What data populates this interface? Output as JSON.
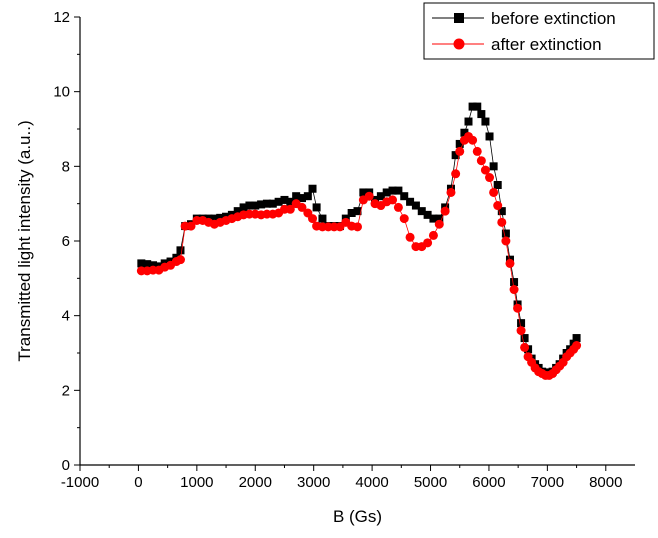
{
  "chart_data": {
    "type": "scatter",
    "title": "",
    "xlabel": "B (Gs)",
    "ylabel": "Transmitted light intensity (a.u..)",
    "xlim": [
      -1000,
      8500
    ],
    "ylim": [
      0,
      12
    ],
    "xticks": [
      -1000,
      0,
      1000,
      2000,
      3000,
      4000,
      5000,
      6000,
      7000,
      8000
    ],
    "yticks": [
      0,
      2,
      4,
      6,
      8,
      10,
      12
    ],
    "grid": false,
    "legend": {
      "position": "top-right",
      "frame": true
    },
    "series": [
      {
        "name": "before extinction",
        "marker": "square",
        "color": "#000000",
        "line_color": "#000000",
        "points": [
          [
            50,
            5.4
          ],
          [
            150,
            5.38
          ],
          [
            250,
            5.35
          ],
          [
            350,
            5.32
          ],
          [
            450,
            5.4
          ],
          [
            550,
            5.45
          ],
          [
            650,
            5.55
          ],
          [
            720,
            5.75
          ],
          [
            800,
            6.4
          ],
          [
            900,
            6.45
          ],
          [
            1000,
            6.6
          ],
          [
            1100,
            6.6
          ],
          [
            1200,
            6.6
          ],
          [
            1300,
            6.6
          ],
          [
            1400,
            6.62
          ],
          [
            1500,
            6.65
          ],
          [
            1600,
            6.7
          ],
          [
            1700,
            6.8
          ],
          [
            1800,
            6.9
          ],
          [
            1900,
            6.95
          ],
          [
            2000,
            6.95
          ],
          [
            2100,
            6.98
          ],
          [
            2200,
            7.0
          ],
          [
            2300,
            7.0
          ],
          [
            2400,
            7.05
          ],
          [
            2500,
            7.1
          ],
          [
            2600,
            7.05
          ],
          [
            2700,
            7.2
          ],
          [
            2800,
            7.15
          ],
          [
            2900,
            7.2
          ],
          [
            2980,
            7.4
          ],
          [
            3050,
            6.9
          ],
          [
            3150,
            6.6
          ],
          [
            3250,
            6.4
          ],
          [
            3350,
            6.4
          ],
          [
            3450,
            6.4
          ],
          [
            3550,
            6.6
          ],
          [
            3650,
            6.75
          ],
          [
            3750,
            6.8
          ],
          [
            3850,
            7.3
          ],
          [
            3950,
            7.3
          ],
          [
            4050,
            7.1
          ],
          [
            4150,
            7.2
          ],
          [
            4250,
            7.3
          ],
          [
            4350,
            7.35
          ],
          [
            4450,
            7.35
          ],
          [
            4550,
            7.2
          ],
          [
            4650,
            7.05
          ],
          [
            4750,
            6.95
          ],
          [
            4850,
            6.8
          ],
          [
            4950,
            6.7
          ],
          [
            5050,
            6.6
          ],
          [
            5150,
            6.6
          ],
          [
            5250,
            6.9
          ],
          [
            5350,
            7.4
          ],
          [
            5430,
            8.3
          ],
          [
            5500,
            8.6
          ],
          [
            5580,
            8.9
          ],
          [
            5650,
            9.2
          ],
          [
            5720,
            9.6
          ],
          [
            5800,
            9.6
          ],
          [
            5870,
            9.4
          ],
          [
            5940,
            9.2
          ],
          [
            6010,
            8.8
          ],
          [
            6080,
            8.0
          ],
          [
            6150,
            7.5
          ],
          [
            6220,
            6.8
          ],
          [
            6290,
            6.2
          ],
          [
            6360,
            5.5
          ],
          [
            6430,
            4.9
          ],
          [
            6490,
            4.3
          ],
          [
            6550,
            3.8
          ],
          [
            6610,
            3.4
          ],
          [
            6670,
            3.1
          ],
          [
            6730,
            2.85
          ],
          [
            6790,
            2.7
          ],
          [
            6850,
            2.6
          ],
          [
            6910,
            2.5
          ],
          [
            6970,
            2.45
          ],
          [
            7030,
            2.48
          ],
          [
            7090,
            2.5
          ],
          [
            7150,
            2.6
          ],
          [
            7210,
            2.7
          ],
          [
            7270,
            2.85
          ],
          [
            7330,
            3.0
          ],
          [
            7390,
            3.1
          ],
          [
            7450,
            3.25
          ],
          [
            7500,
            3.4
          ]
        ]
      },
      {
        "name": "after extinction",
        "marker": "circle",
        "color": "#ff0000",
        "line_color": "#ff0000",
        "points": [
          [
            50,
            5.2
          ],
          [
            150,
            5.2
          ],
          [
            250,
            5.22
          ],
          [
            350,
            5.22
          ],
          [
            450,
            5.3
          ],
          [
            550,
            5.35
          ],
          [
            650,
            5.45
          ],
          [
            720,
            5.5
          ],
          [
            800,
            6.4
          ],
          [
            900,
            6.4
          ],
          [
            1000,
            6.55
          ],
          [
            1100,
            6.55
          ],
          [
            1200,
            6.5
          ],
          [
            1300,
            6.45
          ],
          [
            1400,
            6.5
          ],
          [
            1500,
            6.55
          ],
          [
            1600,
            6.6
          ],
          [
            1700,
            6.65
          ],
          [
            1800,
            6.7
          ],
          [
            1900,
            6.72
          ],
          [
            2000,
            6.72
          ],
          [
            2100,
            6.7
          ],
          [
            2200,
            6.72
          ],
          [
            2300,
            6.72
          ],
          [
            2400,
            6.75
          ],
          [
            2500,
            6.85
          ],
          [
            2600,
            6.85
          ],
          [
            2700,
            7.0
          ],
          [
            2800,
            6.9
          ],
          [
            2900,
            6.75
          ],
          [
            2980,
            6.6
          ],
          [
            3050,
            6.4
          ],
          [
            3150,
            6.38
          ],
          [
            3250,
            6.38
          ],
          [
            3350,
            6.38
          ],
          [
            3450,
            6.38
          ],
          [
            3550,
            6.5
          ],
          [
            3650,
            6.4
          ],
          [
            3750,
            6.38
          ],
          [
            3850,
            7.1
          ],
          [
            3950,
            7.2
          ],
          [
            4050,
            7.0
          ],
          [
            4150,
            6.95
          ],
          [
            4250,
            7.05
          ],
          [
            4350,
            7.1
          ],
          [
            4450,
            6.9
          ],
          [
            4550,
            6.6
          ],
          [
            4650,
            6.1
          ],
          [
            4750,
            5.85
          ],
          [
            4850,
            5.85
          ],
          [
            4950,
            5.95
          ],
          [
            5050,
            6.15
          ],
          [
            5150,
            6.45
          ],
          [
            5250,
            6.8
          ],
          [
            5350,
            7.3
          ],
          [
            5430,
            7.8
          ],
          [
            5500,
            8.4
          ],
          [
            5580,
            8.7
          ],
          [
            5650,
            8.8
          ],
          [
            5720,
            8.7
          ],
          [
            5800,
            8.4
          ],
          [
            5870,
            8.15
          ],
          [
            5940,
            7.9
          ],
          [
            6010,
            7.7
          ],
          [
            6080,
            7.3
          ],
          [
            6150,
            6.95
          ],
          [
            6220,
            6.5
          ],
          [
            6290,
            6.0
          ],
          [
            6360,
            5.4
          ],
          [
            6430,
            4.7
          ],
          [
            6490,
            4.2
          ],
          [
            6550,
            3.6
          ],
          [
            6610,
            3.15
          ],
          [
            6670,
            2.9
          ],
          [
            6730,
            2.75
          ],
          [
            6790,
            2.6
          ],
          [
            6850,
            2.5
          ],
          [
            6910,
            2.45
          ],
          [
            6970,
            2.4
          ],
          [
            7030,
            2.4
          ],
          [
            7090,
            2.45
          ],
          [
            7150,
            2.55
          ],
          [
            7210,
            2.65
          ],
          [
            7270,
            2.75
          ],
          [
            7330,
            2.9
          ],
          [
            7390,
            3.0
          ],
          [
            7450,
            3.1
          ],
          [
            7500,
            3.2
          ]
        ]
      }
    ]
  }
}
